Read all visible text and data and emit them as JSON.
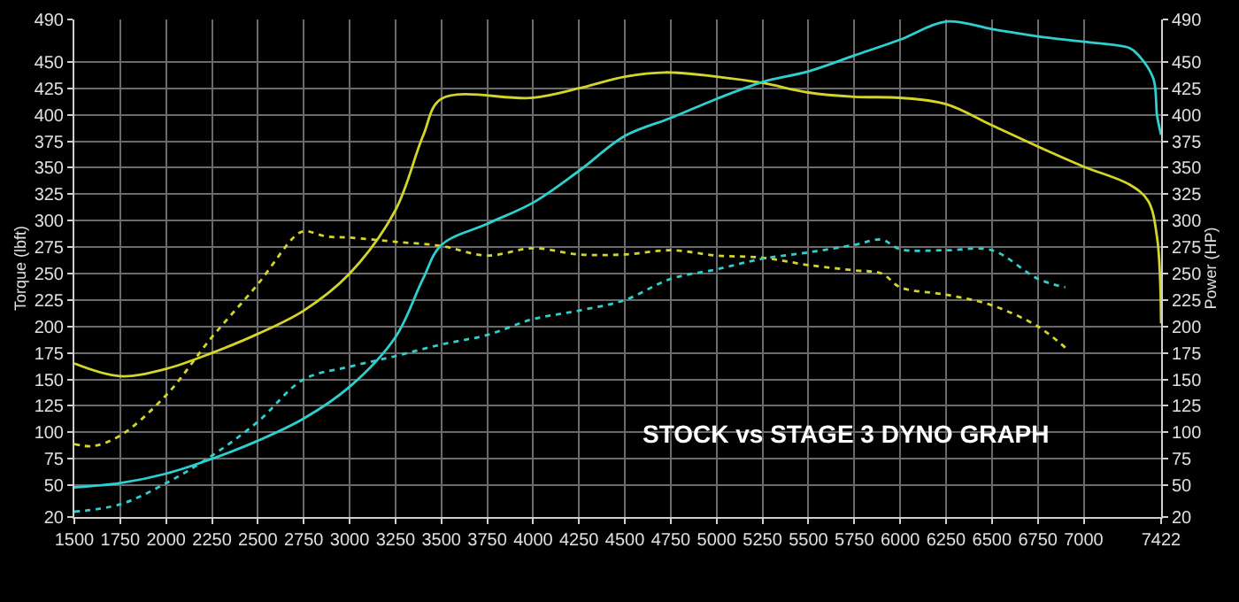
{
  "chart_data": {
    "type": "line",
    "xlabel": null,
    "ylabel": "Torque (lbft)",
    "y2label": "Power (HP)",
    "annotations": [
      "STOCK vs STAGE 3 DYNO GRAPH"
    ],
    "xlim": [
      1500,
      7422
    ],
    "xticks": [
      1500,
      1750,
      2000,
      2250,
      2500,
      2750,
      3000,
      3250,
      3500,
      3750,
      4000,
      4250,
      4500,
      4750,
      5000,
      5250,
      5500,
      5750,
      6000,
      6250,
      6500,
      6750,
      7000,
      7422
    ],
    "ylim": [
      20,
      490
    ],
    "yticks": [
      20,
      50,
      75,
      100,
      125,
      150,
      175,
      200,
      225,
      250,
      275,
      300,
      325,
      350,
      375,
      400,
      425,
      450,
      490
    ],
    "y2lim": [
      20,
      490
    ],
    "y2ticks": [
      20,
      50,
      75,
      100,
      125,
      150,
      175,
      200,
      225,
      250,
      275,
      300,
      325,
      350,
      375,
      400,
      425,
      450,
      490
    ],
    "grid": true,
    "marker": "none",
    "series": [
      {
        "color": "#d4d42a",
        "line_style": "solid",
        "x": [
          1500,
          1750,
          2000,
          2250,
          2500,
          2750,
          3000,
          3250,
          3400,
          3500,
          4000,
          4250,
          4500,
          4720,
          5000,
          5250,
          5500,
          5750,
          6000,
          6250,
          6500,
          6750,
          7000,
          7250,
          7350,
          7400,
          7422
        ],
        "values": [
          165,
          153,
          160,
          175,
          193,
          215,
          250,
          310,
          380,
          415,
          416,
          425,
          436,
          440,
          436,
          430,
          421,
          417,
          416,
          410,
          390,
          370,
          351,
          334,
          319,
          284,
          203
        ]
      },
      {
        "color": "#2ecfcf",
        "line_style": "solid",
        "axis": "y2",
        "x": [
          1500,
          1750,
          2000,
          2250,
          2500,
          2750,
          3000,
          3250,
          3400,
          3500,
          3750,
          4000,
          4250,
          4500,
          4750,
          5000,
          5250,
          5500,
          5750,
          6000,
          6250,
          6500,
          6750,
          7000,
          7250,
          7300,
          7380,
          7400,
          7422
        ],
        "values": [
          48,
          52,
          61,
          75,
          92,
          113,
          143,
          190,
          245,
          277,
          297,
          317,
          347,
          380,
          397,
          415,
          431,
          441,
          456,
          471,
          488,
          481,
          474,
          469,
          463,
          456,
          434,
          399,
          381
        ]
      },
      {
        "color": "#d4d42a",
        "line_style": "dotted",
        "x": [
          1500,
          1600,
          1750,
          2000,
          2250,
          2500,
          2700,
          2750,
          2875,
          3000,
          3250,
          3500,
          3750,
          4000,
          4250,
          4500,
          4750,
          5000,
          5250,
          5500,
          5750,
          5900,
          6000,
          6250,
          6500,
          6750,
          6900
        ],
        "values": [
          89,
          87,
          97,
          135,
          190,
          240,
          285,
          290,
          285,
          284,
          280,
          276,
          267,
          274,
          268,
          268,
          272,
          267,
          265,
          258,
          253,
          250,
          237,
          230,
          220,
          200,
          180
        ]
      },
      {
        "color": "#2ecfcf",
        "line_style": "dotted",
        "axis": "y2",
        "x": [
          1500,
          1750,
          2000,
          2250,
          2500,
          2750,
          3000,
          3250,
          3500,
          3750,
          4000,
          4250,
          4500,
          4750,
          5000,
          5250,
          5500,
          5750,
          5900,
          6000,
          6250,
          6500,
          6750,
          6900
        ],
        "values": [
          25,
          32,
          52,
          78,
          110,
          150,
          162,
          172,
          183,
          192,
          207,
          215,
          225,
          245,
          254,
          264,
          270,
          277,
          282,
          273,
          272,
          272,
          245,
          237
        ]
      }
    ]
  }
}
